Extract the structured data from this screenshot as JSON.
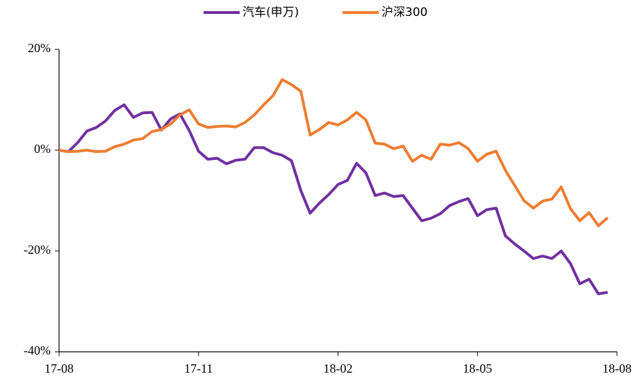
{
  "chart_data": {
    "type": "line",
    "x": [
      0,
      0.2,
      0.4,
      0.6,
      0.8,
      1,
      1.2,
      1.4,
      1.6,
      1.8,
      2,
      2.2,
      2.4,
      2.6,
      2.8,
      3,
      3.2,
      3.4,
      3.6,
      3.8,
      4,
      4.2,
      4.4,
      4.6,
      4.8,
      5,
      5.2,
      5.4,
      5.6,
      5.8,
      6,
      6.2,
      6.4,
      6.6,
      6.8,
      7,
      7.2,
      7.4,
      7.6,
      7.8,
      8,
      8.2,
      8.4,
      8.6,
      8.8,
      9,
      9.2,
      9.4,
      9.6,
      9.8,
      10,
      10.2,
      10.4,
      10.6,
      10.8,
      11,
      11.2,
      11.4,
      11.6,
      11.8
    ],
    "xlim": [
      0,
      12
    ],
    "xticks": [
      {
        "value": 0,
        "label": "17-08"
      },
      {
        "value": 3,
        "label": "17-11"
      },
      {
        "value": 6,
        "label": "18-02"
      },
      {
        "value": 9,
        "label": "18-05"
      },
      {
        "value": 12,
        "label": "18-08"
      }
    ],
    "ylim": [
      -40,
      20
    ],
    "yticks": [
      {
        "value": 20,
        "label": "20%"
      },
      {
        "value": 0,
        "label": "0%"
      },
      {
        "value": -20,
        "label": "-20%"
      },
      {
        "value": -40,
        "label": "-40%"
      }
    ],
    "series": [
      {
        "name": "汽车(申万)",
        "color": "#7030a0",
        "values": [
          0,
          -0.3,
          1.5,
          3.8,
          4.5,
          5.8,
          7.9,
          9,
          6.5,
          7.4,
          7.5,
          4,
          6.2,
          7.2,
          3.9,
          -0.2,
          -1.8,
          -1.6,
          -2.7,
          -2,
          -1.8,
          0.5,
          0.5,
          -0.5,
          -1,
          -2.1,
          -8,
          -12.5,
          -10.5,
          -8.8,
          -6.8,
          -6,
          -2.6,
          -4.5,
          -9,
          -8.5,
          -9.2,
          -9,
          -11.5,
          -14,
          -13.5,
          -12.6,
          -11,
          -10.2,
          -9.6,
          -13,
          -11.8,
          -11.5,
          -17,
          -18.6,
          -20,
          -21.5,
          -21,
          -21.5,
          -20,
          -22.5,
          -26.5,
          -25.6,
          -28.5,
          -28.2
        ]
      },
      {
        "name": "沪深300",
        "color": "#ed7d31",
        "values": [
          0,
          -0.3,
          -0.2,
          0,
          -0.3,
          -0.2,
          0.7,
          1.2,
          2,
          2.3,
          3.7,
          4.1,
          5.2,
          7,
          8,
          5.2,
          4.5,
          4.7,
          4.8,
          4.6,
          5.5,
          7,
          9,
          10.8,
          14,
          13,
          11.7,
          3,
          4.1,
          5.5,
          5,
          6,
          7.5,
          6,
          1.4,
          1.2,
          0.3,
          0.8,
          -2.2,
          -1,
          -1.8,
          1.2,
          1,
          1.5,
          0.3,
          -2.2,
          -0.8,
          -0.2,
          -4,
          -7,
          -10,
          -11.5,
          -10.1,
          -9.7,
          -7.3,
          -11.6,
          -14,
          -12.4,
          -15,
          -13.4
        ]
      }
    ]
  }
}
